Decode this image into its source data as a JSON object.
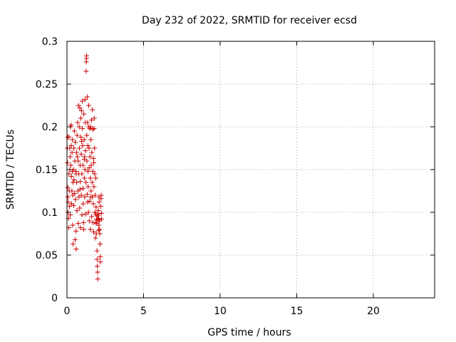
{
  "chart_data": {
    "type": "scatter",
    "title": "Day 232 of 2022, SRMTID for receiver ecsd",
    "xlabel": "GPS time / hours",
    "ylabel": "SRMTID / TECUs",
    "xlim": [
      0,
      24
    ],
    "ylim": [
      0,
      0.3
    ],
    "xticks": [
      0,
      5,
      10,
      15,
      20
    ],
    "xtick_labels": [
      "0",
      "5",
      "10",
      "15",
      "20"
    ],
    "yticks": [
      0,
      0.05,
      0.1,
      0.15,
      0.2,
      0.25,
      0.3
    ],
    "ytick_labels": [
      "0",
      "0.05",
      "0.1",
      "0.15",
      "0.2",
      "0.25",
      "0.3"
    ],
    "grid": true,
    "marker": "plus",
    "series": [
      {
        "name": "SRMTID",
        "color": "#cc0000",
        "points": [
          [
            0.02,
            0.175
          ],
          [
            0.03,
            0.158
          ],
          [
            0.05,
            0.188
          ],
          [
            0.05,
            0.129
          ],
          [
            0.06,
            0.118
          ],
          [
            0.07,
            0.1
          ],
          [
            0.08,
            0.112
          ],
          [
            0.1,
            0.093
          ],
          [
            0.12,
            0.082
          ],
          [
            0.13,
            0.145
          ],
          [
            0.14,
            0.188
          ],
          [
            0.15,
            0.125
          ],
          [
            0.17,
            0.107
          ],
          [
            0.18,
            0.175
          ],
          [
            0.19,
            0.15
          ],
          [
            0.21,
            0.165
          ],
          [
            0.22,
            0.097
          ],
          [
            0.23,
            0.2
          ],
          [
            0.25,
            0.155
          ],
          [
            0.27,
            0.202
          ],
          [
            0.28,
            0.178
          ],
          [
            0.29,
            0.142
          ],
          [
            0.3,
            0.11
          ],
          [
            0.32,
            0.125
          ],
          [
            0.33,
            0.17
          ],
          [
            0.35,
            0.148
          ],
          [
            0.36,
            0.185
          ],
          [
            0.37,
            0.085
          ],
          [
            0.38,
            0.12
          ],
          [
            0.4,
            0.063
          ],
          [
            0.42,
            0.15
          ],
          [
            0.44,
            0.108
          ],
          [
            0.45,
            0.175
          ],
          [
            0.46,
            0.138
          ],
          [
            0.48,
            0.195
          ],
          [
            0.5,
            0.122
          ],
          [
            0.52,
            0.16
          ],
          [
            0.53,
            0.068
          ],
          [
            0.55,
            0.182
          ],
          [
            0.56,
            0.115
          ],
          [
            0.58,
            0.148
          ],
          [
            0.59,
            0.078
          ],
          [
            0.6,
            0.057
          ],
          [
            0.62,
            0.17
          ],
          [
            0.63,
            0.135
          ],
          [
            0.65,
            0.102
          ],
          [
            0.66,
            0.19
          ],
          [
            0.68,
            0.165
          ],
          [
            0.7,
            0.205
          ],
          [
            0.71,
            0.125
          ],
          [
            0.73,
            0.16
          ],
          [
            0.74,
            0.087
          ],
          [
            0.75,
            0.225
          ],
          [
            0.77,
            0.145
          ],
          [
            0.78,
            0.118
          ],
          [
            0.8,
            0.2
          ],
          [
            0.81,
            0.175
          ],
          [
            0.83,
            0.105
          ],
          [
            0.84,
            0.222
          ],
          [
            0.86,
            0.155
          ],
          [
            0.87,
            0.136
          ],
          [
            0.88,
            0.082
          ],
          [
            0.9,
            0.21
          ],
          [
            0.91,
            0.188
          ],
          [
            0.93,
            0.168
          ],
          [
            0.94,
            0.12
          ],
          [
            0.95,
            0.219
          ],
          [
            0.97,
            0.145
          ],
          [
            0.98,
            0.097
          ],
          [
            1.0,
            0.23
          ],
          [
            1.01,
            0.198
          ],
          [
            1.02,
            0.178
          ],
          [
            1.04,
            0.155
          ],
          [
            1.05,
            0.128
          ],
          [
            1.06,
            0.11
          ],
          [
            1.08,
            0.088
          ],
          [
            1.09,
            0.08
          ],
          [
            1.1,
            0.215
          ],
          [
            1.12,
            0.185
          ],
          [
            1.13,
            0.162
          ],
          [
            1.14,
            0.14
          ],
          [
            1.16,
            0.118
          ],
          [
            1.17,
            0.15
          ],
          [
            1.18,
            0.232
          ],
          [
            1.2,
            0.205
          ],
          [
            1.21,
            0.172
          ],
          [
            1.22,
            0.098
          ],
          [
            1.24,
            0.135
          ],
          [
            1.25,
            0.265
          ],
          [
            1.26,
            0.276
          ],
          [
            1.27,
            0.28
          ],
          [
            1.28,
            0.283
          ],
          [
            1.29,
            0.19
          ],
          [
            1.3,
            0.16
          ],
          [
            1.32,
            0.121
          ],
          [
            1.33,
            0.235
          ],
          [
            1.34,
            0.205
          ],
          [
            1.36,
            0.178
          ],
          [
            1.37,
            0.148
          ],
          [
            1.38,
            0.13
          ],
          [
            1.4,
            0.1
          ],
          [
            1.41,
            0.2
          ],
          [
            1.42,
            0.225
          ],
          [
            1.44,
            0.175
          ],
          [
            1.45,
            0.152
          ],
          [
            1.46,
            0.09
          ],
          [
            1.48,
            0.113
          ],
          [
            1.49,
            0.198
          ],
          [
            1.5,
            0.165
          ],
          [
            1.52,
            0.14
          ],
          [
            1.53,
            0.08
          ],
          [
            1.54,
            0.2
          ],
          [
            1.56,
            0.185
          ],
          [
            1.57,
            0.125
          ],
          [
            1.58,
            0.155
          ],
          [
            1.6,
            0.208
          ],
          [
            1.61,
            0.095
          ],
          [
            1.62,
            0.17
          ],
          [
            1.64,
            0.135
          ],
          [
            1.65,
            0.118
          ],
          [
            1.66,
            0.22
          ],
          [
            1.68,
            0.197
          ],
          [
            1.69,
            0.148
          ],
          [
            1.7,
            0.088
          ],
          [
            1.72,
            0.11
          ],
          [
            1.73,
            0.163
          ],
          [
            1.74,
            0.077
          ],
          [
            1.76,
            0.13
          ],
          [
            1.77,
            0.198
          ],
          [
            1.78,
            0.21
          ],
          [
            1.8,
            0.175
          ],
          [
            1.81,
            0.145
          ],
          [
            1.82,
            0.1
          ],
          [
            1.84,
            0.12
          ],
          [
            1.85,
            0.088
          ],
          [
            1.86,
            0.07
          ],
          [
            1.88,
            0.14
          ],
          [
            1.89,
            0.098
          ],
          [
            1.9,
            0.106
          ],
          [
            1.92,
            0.075
          ],
          [
            1.93,
            0.092
          ],
          [
            1.94,
            0.087
          ],
          [
            1.96,
            0.055
          ],
          [
            1.97,
            0.045
          ],
          [
            1.98,
            0.037
          ],
          [
            2.0,
            0.03
          ],
          [
            2.01,
            0.022
          ],
          [
            2.02,
            0.096
          ],
          [
            2.04,
            0.102
          ],
          [
            2.05,
            0.098
          ],
          [
            2.06,
            0.093
          ],
          [
            2.08,
            0.085
          ],
          [
            2.09,
            0.118
          ],
          [
            2.1,
            0.112
          ],
          [
            2.12,
            0.09
          ],
          [
            2.13,
            0.08
          ],
          [
            2.14,
            0.075
          ],
          [
            2.16,
            0.063
          ],
          [
            2.17,
            0.048
          ],
          [
            2.18,
            0.042
          ],
          [
            2.2,
            0.107
          ],
          [
            2.22,
            0.116
          ],
          [
            2.24,
            0.12
          ],
          [
            2.25,
            0.099
          ],
          [
            2.26,
            0.092
          ],
          [
            0.6,
            0.145
          ],
          [
            0.95,
            0.183
          ],
          [
            1.15,
            0.165
          ],
          [
            1.35,
            0.112
          ],
          [
            1.55,
            0.118
          ],
          [
            1.75,
            0.158
          ],
          [
            0.4,
            0.135
          ],
          [
            0.85,
            0.127
          ],
          [
            1.95,
            0.096
          ],
          [
            2.03,
            0.091
          ],
          [
            2.07,
            0.079
          ]
        ]
      }
    ]
  }
}
